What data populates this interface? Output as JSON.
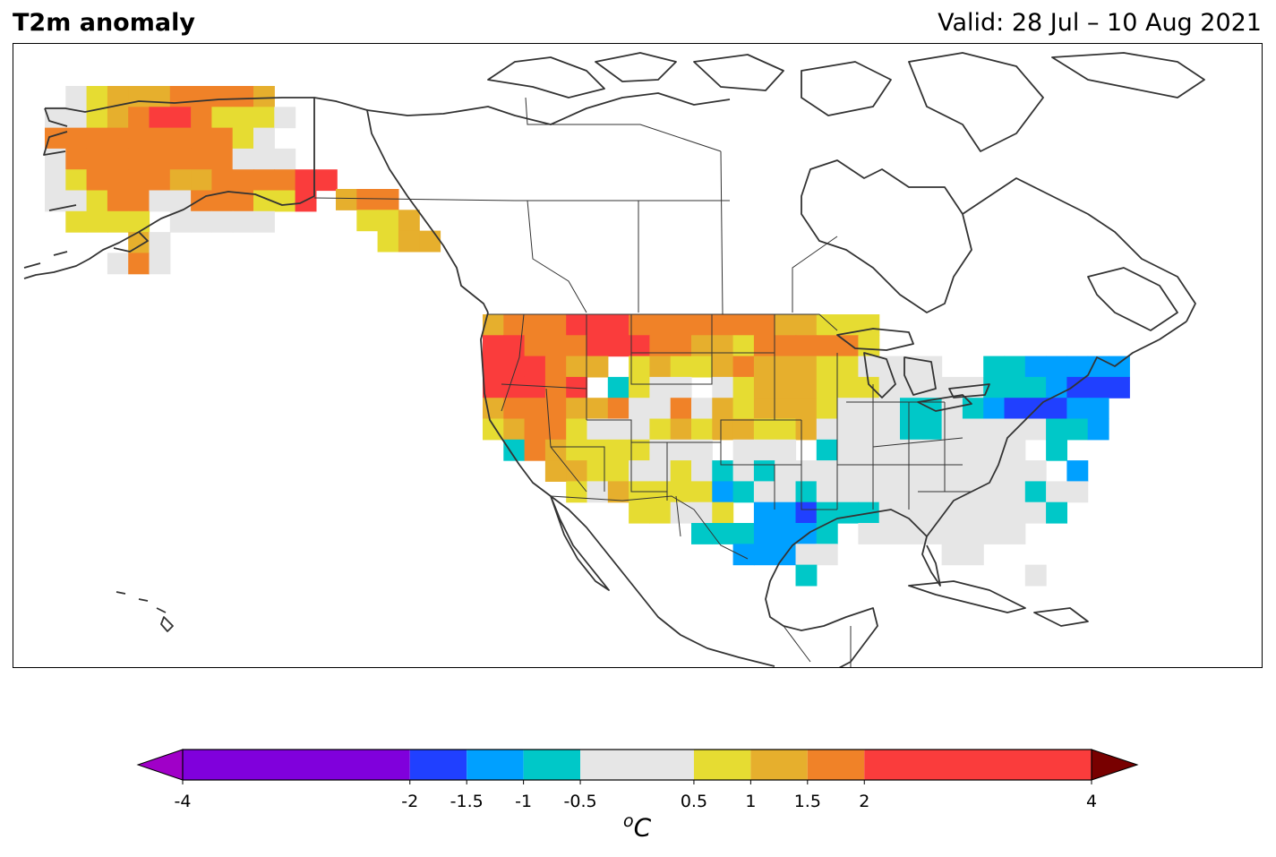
{
  "title": "T2m anomaly",
  "valid_label": "Valid: 28 Jul – 10 Aug 2021",
  "colorbar": {
    "unit_base": "C",
    "unit_sup": "o",
    "ticks": [
      "-4",
      "-2",
      "-1.5",
      "-1",
      "-0.5",
      "0.5",
      "1",
      "1.5",
      "2",
      "4"
    ],
    "tick_values": [
      -4,
      -2,
      -1.5,
      -1,
      -0.5,
      0.5,
      1,
      1.5,
      2,
      4
    ],
    "bins": [
      {
        "from": -4,
        "to": -2,
        "color": "#8000dc"
      },
      {
        "from": -2,
        "to": -1.5,
        "color": "#2040ff"
      },
      {
        "from": -1.5,
        "to": -1,
        "color": "#00a0ff"
      },
      {
        "from": -1,
        "to": -0.5,
        "color": "#00c8c8"
      },
      {
        "from": -0.5,
        "to": 0.5,
        "color": "#e6e6e6"
      },
      {
        "from": 0.5,
        "to": 1,
        "color": "#e6dc32"
      },
      {
        "from": 1,
        "to": 1.5,
        "color": "#e6af2d"
      },
      {
        "from": 1.5,
        "to": 2,
        "color": "#f08228"
      },
      {
        "from": 2,
        "to": 4,
        "color": "#fa3c3c"
      }
    ],
    "under_color": "#a000c8",
    "over_color": "#780000"
  }
}
